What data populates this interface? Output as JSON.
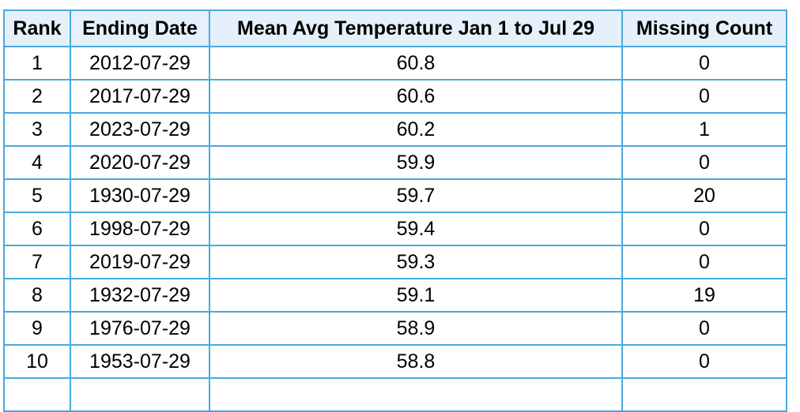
{
  "table": {
    "headers": {
      "rank": "Rank",
      "ending_date": "Ending Date",
      "mean_avg_temperature": "Mean Avg Temperature Jan 1 to Jul 29",
      "missing_count": "Missing Count"
    },
    "rows": [
      {
        "rank": "1",
        "ending_date": "2012-07-29",
        "mean_avg_temperature": "60.8",
        "missing_count": "0"
      },
      {
        "rank": "2",
        "ending_date": "2017-07-29",
        "mean_avg_temperature": "60.6",
        "missing_count": "0"
      },
      {
        "rank": "3",
        "ending_date": "2023-07-29",
        "mean_avg_temperature": "60.2",
        "missing_count": "1"
      },
      {
        "rank": "4",
        "ending_date": "2020-07-29",
        "mean_avg_temperature": "59.9",
        "missing_count": "0"
      },
      {
        "rank": "5",
        "ending_date": "1930-07-29",
        "mean_avg_temperature": "59.7",
        "missing_count": "20"
      },
      {
        "rank": "6",
        "ending_date": "1998-07-29",
        "mean_avg_temperature": "59.4",
        "missing_count": "0"
      },
      {
        "rank": "7",
        "ending_date": "2019-07-29",
        "mean_avg_temperature": "59.3",
        "missing_count": "0"
      },
      {
        "rank": "8",
        "ending_date": "1932-07-29",
        "mean_avg_temperature": "59.1",
        "missing_count": "19"
      },
      {
        "rank": "9",
        "ending_date": "1976-07-29",
        "mean_avg_temperature": "58.9",
        "missing_count": "0"
      },
      {
        "rank": "10",
        "ending_date": "1953-07-29",
        "mean_avg_temperature": "58.8",
        "missing_count": "0"
      }
    ]
  },
  "colors": {
    "border": "#4aa9de",
    "header_background": "#e6f0fa"
  }
}
